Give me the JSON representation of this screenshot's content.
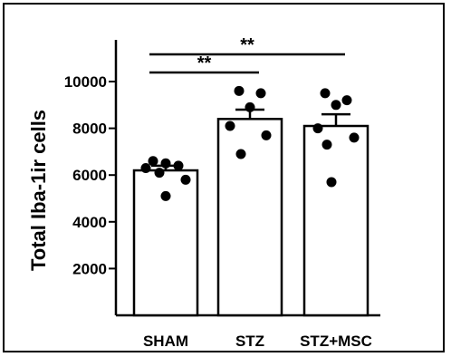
{
  "chart_data": {
    "type": "bar",
    "title": "",
    "xlabel": "",
    "ylabel": "Total Iba-1ir cells",
    "categories": [
      "SHAM",
      "STZ",
      "STZ+MSC"
    ],
    "values": [
      6200,
      8400,
      8100
    ],
    "sem": [
      200,
      400,
      500
    ],
    "points": [
      [
        6600,
        6500,
        6400,
        6300,
        6100,
        5800,
        5100
      ],
      [
        9600,
        9500,
        8900,
        8100,
        7700,
        6900
      ],
      [
        9500,
        9200,
        9000,
        8000,
        7600,
        7300,
        5700
      ]
    ],
    "y_ticks": [
      "2000",
      "4000",
      "6000",
      "8000",
      "10000"
    ],
    "ylim": [
      0,
      11000
    ],
    "grid": false,
    "significance": [
      {
        "from": "SHAM",
        "to": "STZ",
        "label": "**"
      },
      {
        "from": "SHAM",
        "to": "STZ+MSC",
        "label": "**"
      }
    ],
    "colors": {
      "bar_fill": "#ffffff",
      "bar_stroke": "#000000",
      "points": "#000000"
    }
  }
}
